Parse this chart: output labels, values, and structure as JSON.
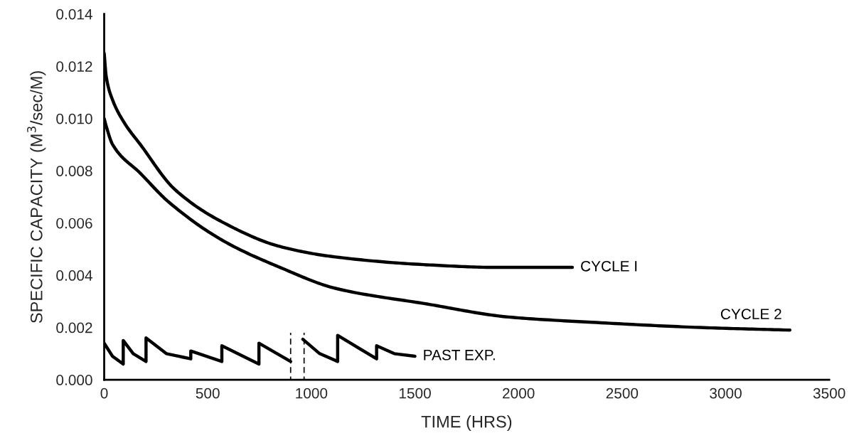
{
  "chart_data": {
    "type": "line",
    "xlabel": "TIME (HRS)",
    "ylabel": "SPECIFIC CAPACITY (M$^{3}$/sec/M)",
    "xlim": [
      0,
      3500
    ],
    "xticks": [
      0,
      500,
      1000,
      1500,
      2000,
      2500,
      3000,
      3500
    ],
    "ylim": [
      0,
      0.014
    ],
    "yticks": [
      {
        "value": 0,
        "label": "0.000"
      },
      {
        "value": 0.002,
        "label": "0.002"
      },
      {
        "value": 0.004,
        "label": "0.004"
      },
      {
        "value": 0.006,
        "label": "0.006"
      },
      {
        "value": 0.008,
        "label": "0.008"
      },
      {
        "value": 0.01,
        "label": "0.010"
      },
      {
        "value": 0.012,
        "label": "0.012"
      },
      {
        "value": 0.014,
        "label": "0.014"
      }
    ],
    "grid": false,
    "legend": false,
    "marker": "none",
    "line_style": "solid",
    "series": [
      {
        "name": "CYCLE I",
        "color": "#000000",
        "x": [
          0,
          10,
          41,
          100,
          175,
          339,
          579,
          849,
          1116,
          1558,
          1900,
          2260
        ],
        "values": [
          0.0125,
          0.0116,
          0.0107,
          0.0098,
          0.009,
          0.0073,
          0.006,
          0.0051,
          0.0047,
          0.0044,
          0.0043,
          0.0043
        ]
      },
      {
        "name": "CYCLE 2",
        "color": "#000000",
        "x": [
          0,
          10,
          41,
          175,
          312,
          579,
          849,
          1116,
          1558,
          1953,
          2355,
          2876,
          3310
        ],
        "values": [
          0.01,
          0.0097,
          0.009,
          0.0079,
          0.0068,
          0.0053,
          0.0043,
          0.0035,
          0.0029,
          0.0024,
          0.0022,
          0.002,
          0.0019
        ]
      },
      {
        "name": "PAST EXP.",
        "color": "#000000",
        "x": [
          0,
          40,
          92,
          92,
          140,
          202,
          202,
          300,
          418,
          418,
          568,
          568,
          747,
          747,
          900,
          null,
          959,
          1040,
          1127,
          1127,
          1315,
          1315,
          1400,
          1500
        ],
        "values": [
          0.0014,
          0.0009,
          0.0006,
          0.0015,
          0.001,
          0.0007,
          0.0016,
          0.001,
          0.0008,
          0.0011,
          0.0007,
          0.0013,
          0.0006,
          0.0014,
          0.0007,
          null,
          0.00155,
          0.001,
          0.0007,
          0.0017,
          0.0008,
          0.0013,
          0.001,
          0.0009
        ]
      },
      {
        "color": "#000000",
        "line_style": "dashed",
        "x": [
          900,
          900
        ],
        "values": [
          0,
          0.0018
        ]
      },
      {
        "color": "#000000",
        "line_style": "dashed",
        "x": [
          965,
          965
        ],
        "values": [
          0,
          0.0018
        ]
      }
    ]
  }
}
